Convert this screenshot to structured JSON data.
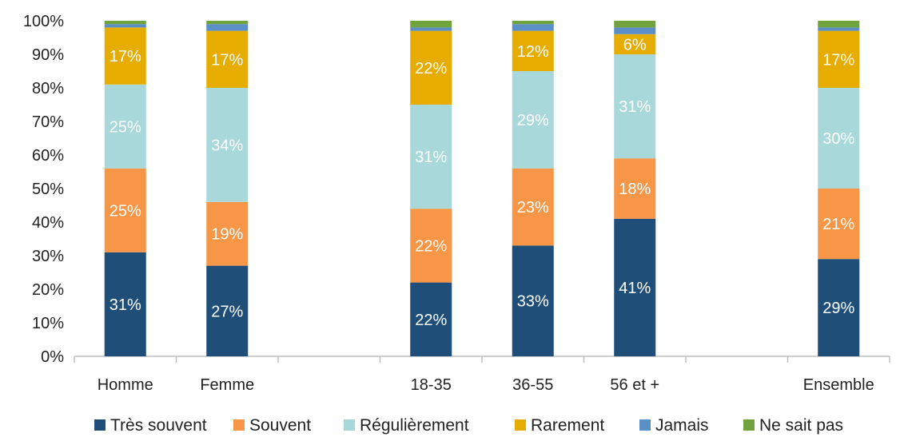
{
  "chart_data": {
    "type": "bar",
    "stacked": true,
    "title": "",
    "xlabel": "",
    "ylabel": "",
    "ylim": [
      0,
      100
    ],
    "y_ticks": [
      "0%",
      "10%",
      "20%",
      "30%",
      "40%",
      "50%",
      "60%",
      "70%",
      "80%",
      "90%",
      "100%"
    ],
    "categories": [
      "Homme",
      "Femme",
      "",
      "18-35",
      "36-55",
      "56 et +",
      "",
      "Ensemble"
    ],
    "grid": false,
    "legend_position": "bottom",
    "series": [
      {
        "name": "Très souvent",
        "color": "#1f4e79",
        "label_color": "#ffffff",
        "values": [
          31,
          27,
          null,
          22,
          33,
          41,
          null,
          29
        ],
        "labels": [
          "31%",
          "27%",
          "",
          "22%",
          "33%",
          "41%",
          "",
          "29%"
        ]
      },
      {
        "name": "Souvent",
        "color": "#f79646",
        "label_color": "#ffffff",
        "values": [
          25,
          19,
          null,
          22,
          23,
          18,
          null,
          21
        ],
        "labels": [
          "25%",
          "19%",
          "",
          "22%",
          "23%",
          "18%",
          "",
          "21%"
        ]
      },
      {
        "name": "Régulièrement",
        "color": "#a9d8da",
        "label_color": "#ffffff",
        "values": [
          25,
          34,
          null,
          31,
          29,
          31,
          null,
          30
        ],
        "labels": [
          "25%",
          "34%",
          "",
          "31%",
          "29%",
          "31%",
          "",
          "30%"
        ]
      },
      {
        "name": "Rarement",
        "color": "#e6ac00",
        "label_color": "#ffffff",
        "values": [
          17,
          17,
          null,
          22,
          12,
          6,
          null,
          17
        ],
        "labels": [
          "17%",
          "17%",
          "",
          "22%",
          "12%",
          "6%",
          "",
          "17%"
        ]
      },
      {
        "name": "Jamais",
        "color": "#5b8fc7",
        "label_color": "#ffffff",
        "values": [
          1,
          2,
          null,
          1,
          2,
          2,
          null,
          1
        ],
        "labels": [
          "",
          "",
          "",
          "",
          "",
          "",
          "",
          ""
        ]
      },
      {
        "name": "Ne sait pas",
        "color": "#70a33e",
        "label_color": "#ffffff",
        "values": [
          1,
          1,
          null,
          2,
          1,
          2,
          null,
          2
        ],
        "labels": [
          "",
          "",
          "",
          "",
          "",
          "",
          "",
          ""
        ]
      }
    ]
  }
}
